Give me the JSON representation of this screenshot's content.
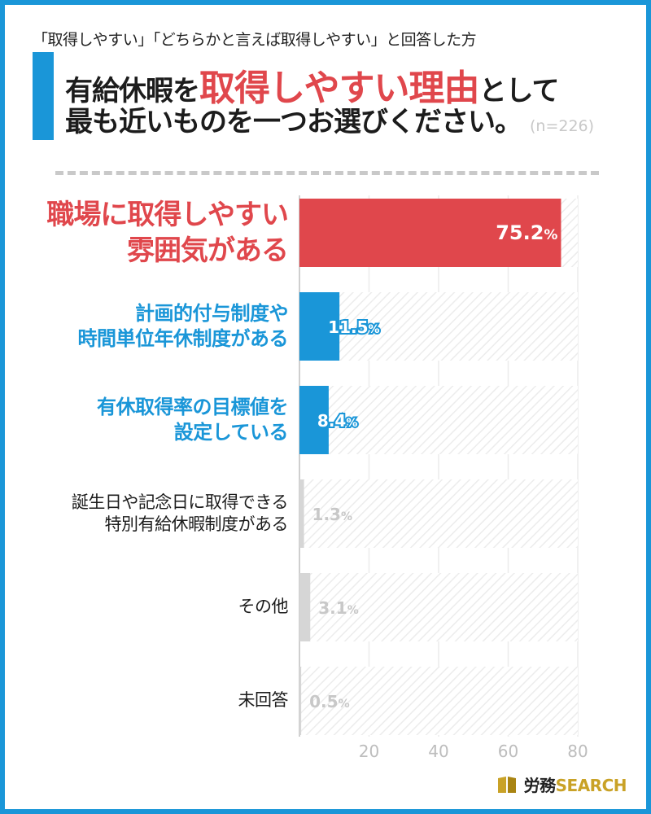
{
  "header": {
    "pretitle": "「取得しやすい」「どちらかと言えば取得しやすい」と回答した方",
    "title_line1_a": "有給休暇を",
    "title_line1_accent": "取得しやすい理由",
    "title_line1_b": "として",
    "title_line2": "最も近いものを一つお選びください。",
    "sample_size": "(n=226)"
  },
  "chart_data": {
    "type": "bar",
    "orientation": "horizontal",
    "title": "有給休暇を取得しやすい理由として最も近いものを一つお選びください。",
    "categories": [
      [
        "職場に取得しやすい",
        "雰囲気がある"
      ],
      [
        "計画的付与制度や",
        "時間単位年休制度がある"
      ],
      [
        "有休取得率の目標値を",
        "設定している"
      ],
      [
        "誕生日や記念日に取得できる",
        "特別有給休暇制度がある"
      ],
      [
        "その他"
      ],
      [
        "未回答"
      ]
    ],
    "values": [
      75.2,
      11.5,
      8.4,
      1.3,
      3.1,
      0.5
    ],
    "value_labels": [
      "75.2%",
      "11.5%",
      "8.4%",
      "1.3%",
      "3.1%",
      "0.5%"
    ],
    "xlim": [
      0,
      80
    ],
    "xticks": [
      20,
      40,
      60,
      80
    ],
    "grid": true,
    "colors": {
      "highlight": "#e0474c",
      "primary": "#1a96d8",
      "muted": "#d6d6d6",
      "muted_text": "#c8c8c8",
      "label_default": "#1c1c1c",
      "stripe": "#f0f0f0"
    },
    "styles": [
      "highlight",
      "primary",
      "primary",
      "muted",
      "muted",
      "muted"
    ]
  },
  "footer": {
    "logo_a": "労務",
    "logo_b": "SEARCH"
  }
}
